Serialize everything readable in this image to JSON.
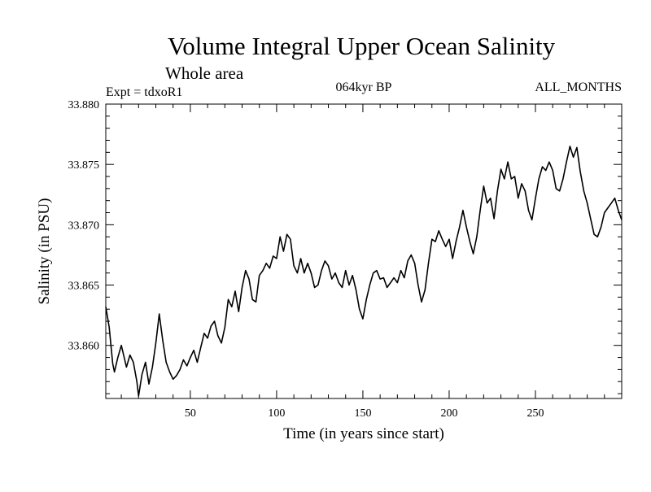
{
  "chart_data": {
    "type": "line",
    "title": "Volume Integral Upper Ocean Salinity",
    "subtitle": "Whole area",
    "experiment": "Expt = tdxoR1",
    "period": "064kyr BP",
    "months": "ALL_MONTHS",
    "xlabel": "Time (in years since start)",
    "ylabel": "Salinity (in PSU)",
    "xlim": [
      1,
      300
    ],
    "ylim": [
      33.8556,
      33.88
    ],
    "x_ticks": [
      50,
      100,
      150,
      200,
      250
    ],
    "x_tick_labels": [
      "50",
      "100",
      "150",
      "200",
      "250"
    ],
    "y_ticks": [
      33.86,
      33.865,
      33.87,
      33.875,
      33.88
    ],
    "y_tick_labels": [
      "33.860",
      "33.865",
      "33.870",
      "33.875",
      "33.880"
    ],
    "series": [
      {
        "name": "Salinity",
        "x": [
          1,
          3,
          5,
          6,
          8,
          10,
          12,
          13,
          15,
          17,
          19,
          20,
          22,
          24,
          26,
          28,
          30,
          32,
          34,
          36,
          38,
          40,
          42,
          44,
          46,
          48,
          50,
          52,
          54,
          56,
          58,
          60,
          62,
          64,
          66,
          68,
          70,
          72,
          74,
          76,
          78,
          80,
          82,
          84,
          86,
          88,
          90,
          92,
          94,
          96,
          98,
          100,
          102,
          104,
          106,
          108,
          110,
          112,
          114,
          116,
          118,
          120,
          122,
          124,
          126,
          128,
          130,
          132,
          134,
          136,
          138,
          140,
          142,
          144,
          146,
          148,
          150,
          152,
          154,
          156,
          158,
          160,
          162,
          164,
          166,
          168,
          170,
          172,
          174,
          176,
          178,
          180,
          182,
          184,
          186,
          188,
          190,
          192,
          194,
          196,
          198,
          200,
          202,
          204,
          206,
          208,
          210,
          212,
          214,
          216,
          218,
          220,
          222,
          224,
          226,
          228,
          230,
          232,
          234,
          236,
          238,
          240,
          242,
          244,
          246,
          248,
          250,
          252,
          254,
          256,
          258,
          260,
          262,
          264,
          266,
          268,
          270,
          272,
          274,
          276,
          278,
          280,
          282,
          284,
          286,
          288,
          290,
          292,
          294,
          296,
          298,
          300
        ],
        "values": [
          33.8632,
          33.8615,
          33.8585,
          33.8578,
          33.859,
          33.86,
          33.8588,
          33.8582,
          33.8592,
          33.8586,
          33.857,
          33.8558,
          33.8576,
          33.8586,
          33.8568,
          33.8582,
          33.8602,
          33.8626,
          33.8604,
          33.8586,
          33.8578,
          33.8572,
          33.8575,
          33.858,
          33.8588,
          33.8583,
          33.859,
          33.8596,
          33.8586,
          33.8598,
          33.861,
          33.8606,
          33.8616,
          33.862,
          33.8608,
          33.8602,
          33.8615,
          33.8638,
          33.8632,
          33.8645,
          33.8628,
          33.8648,
          33.8662,
          33.8655,
          33.8638,
          33.8636,
          33.8658,
          33.8662,
          33.8668,
          33.8664,
          33.8674,
          33.8672,
          33.869,
          33.8678,
          33.8692,
          33.8688,
          33.8666,
          33.866,
          33.8672,
          33.866,
          33.8668,
          33.866,
          33.8648,
          33.865,
          33.8662,
          33.867,
          33.8666,
          33.8655,
          33.866,
          33.8652,
          33.8648,
          33.8662,
          33.865,
          33.8658,
          33.8646,
          33.863,
          33.8622,
          33.8638,
          33.865,
          33.866,
          33.8662,
          33.8655,
          33.8656,
          33.8648,
          33.8652,
          33.8656,
          33.8652,
          33.8662,
          33.8656,
          33.867,
          33.8675,
          33.8668,
          33.865,
          33.8636,
          33.8646,
          33.8668,
          33.8688,
          33.8686,
          33.8695,
          33.8688,
          33.8682,
          33.8688,
          33.8672,
          33.8686,
          33.8698,
          33.8712,
          33.8698,
          33.8686,
          33.8676,
          33.869,
          33.8712,
          33.8732,
          33.8718,
          33.8722,
          33.8705,
          33.8728,
          33.8746,
          33.8738,
          33.8752,
          33.8738,
          33.874,
          33.8722,
          33.8734,
          33.8728,
          33.8712,
          33.8704,
          33.8722,
          33.8738,
          33.8748,
          33.8745,
          33.8752,
          33.8745,
          33.873,
          33.8728,
          33.8738,
          33.8752,
          33.8765,
          33.8756,
          33.8764,
          33.8744,
          33.8728,
          33.8718,
          33.8705,
          33.8692,
          33.869,
          33.8698,
          33.871,
          33.8714,
          33.8718,
          33.8722,
          33.8712,
          33.8704
        ]
      }
    ]
  }
}
